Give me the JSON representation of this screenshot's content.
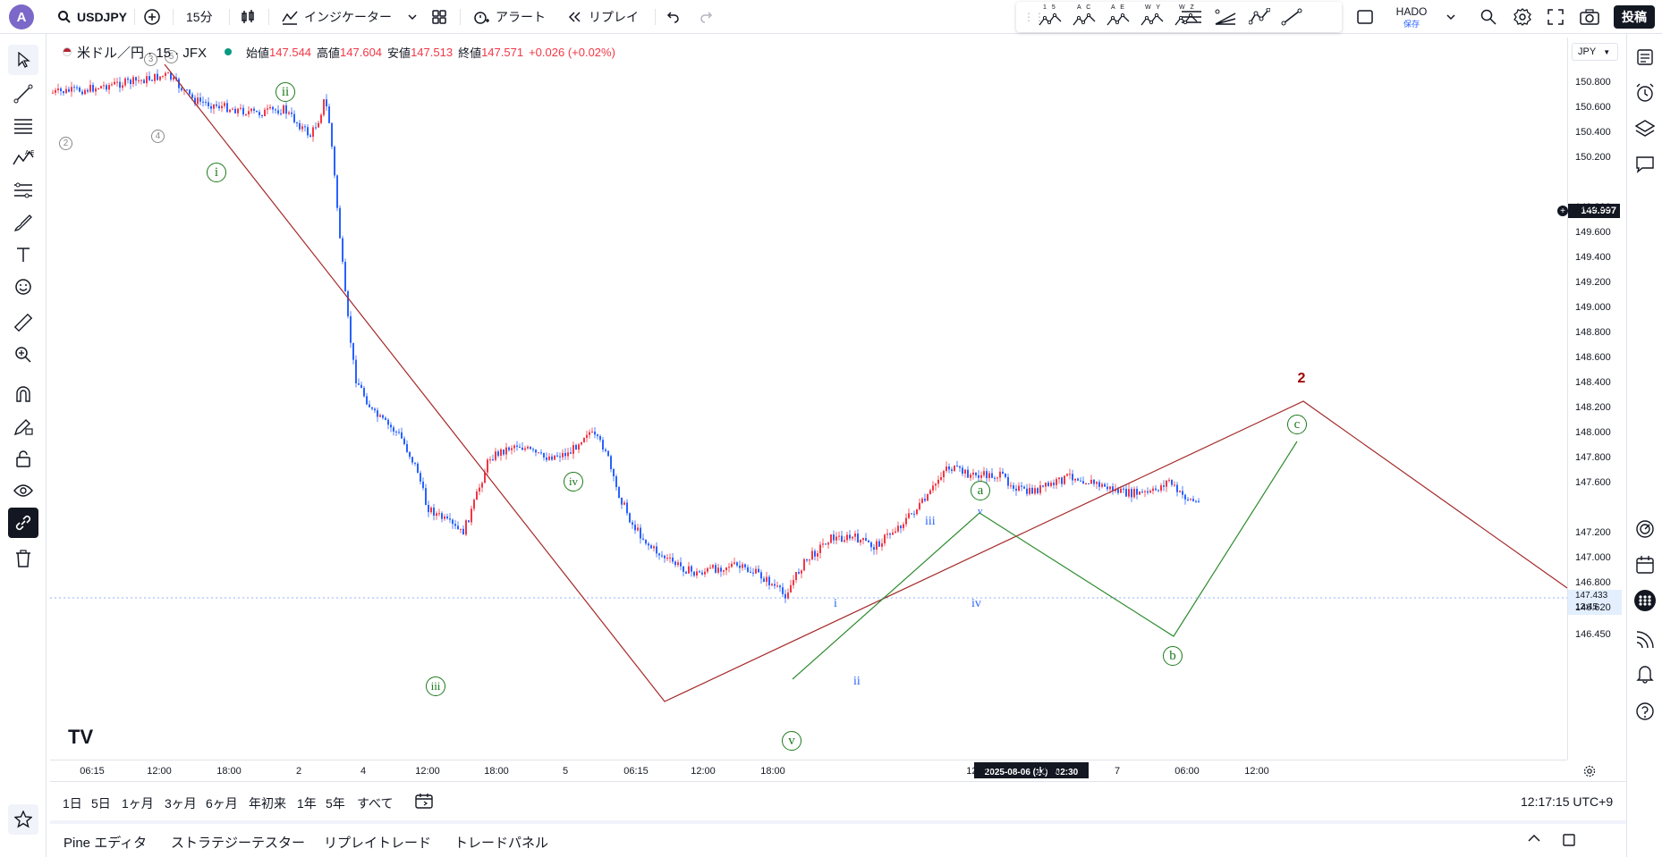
{
  "topbar": {
    "avatar": "A",
    "symbol": "USDJPY",
    "interval": "15分",
    "indicators_label": "インジケーター",
    "alert_label": "アラート",
    "replay_label": "リプレイ",
    "layout_name": "HADO",
    "layout_status": "保存",
    "post_label": "投稿",
    "draw_tools": [
      "1 5",
      "A C",
      "A E",
      "W Y",
      "W Z"
    ]
  },
  "legend": {
    "title": "米ドル／円 · 15 · JFX",
    "open_label": "始値",
    "open_value": "147.544",
    "high_label": "高値",
    "high_value": "147.604",
    "low_label": "安値",
    "low_value": "147.513",
    "close_label": "終値",
    "close_value": "147.571",
    "change": "+0.026 (+0.02%)"
  },
  "price_scale": {
    "currency": "JPY",
    "labels": [
      "150.800",
      "150.600",
      "150.400",
      "150.200",
      "149.800",
      "149.600",
      "149.400",
      "149.200",
      "149.000",
      "148.800",
      "148.600",
      "148.400",
      "148.200",
      "148.000",
      "147.800",
      "147.600",
      "147.200",
      "147.000",
      "146.800",
      "146.620",
      "146.450"
    ],
    "crosshair_price": "149.997",
    "last_price": "147.433",
    "countdown": "12:45"
  },
  "time_axis": {
    "labels": [
      "06:15",
      "12:00",
      "18:00",
      "2",
      "4",
      "12:00",
      "18:00",
      "5",
      "06:15",
      "12:00",
      "18:00",
      "12:00",
      "18:00",
      "7",
      "06:00",
      "12:00"
    ],
    "crosshair_time": "2025-08-06 (水)   02:30"
  },
  "range_bar": {
    "ranges": [
      "1日",
      "5日",
      "1ヶ月",
      "3ヶ月",
      "6ヶ月",
      "年初来",
      "1年",
      "5年",
      "すべて"
    ],
    "clock": "12:17:15 UTC+9"
  },
  "bottom_tabs": [
    "Pine エディタ",
    "ストラテジーテスター",
    "リプレイトレード",
    "トレードパネル"
  ],
  "wave_labels": {
    "i": "i",
    "ii": "ii",
    "iii": "iii",
    "iv": "iv",
    "v": "v",
    "a": "a",
    "b": "b",
    "c": "c",
    "two": "2",
    "sub_i": "i",
    "sub_ii": "ii",
    "sub_iii": "iii",
    "sub_iv": "iv",
    "sub_v": "v",
    "g2": "2",
    "g3": "3",
    "g4": "4",
    "g5": "5"
  },
  "colors": {
    "up": "#f23645",
    "down": "#2962ff",
    "red_line": "#a52a2a",
    "green_line": "#2e8b2e"
  }
}
